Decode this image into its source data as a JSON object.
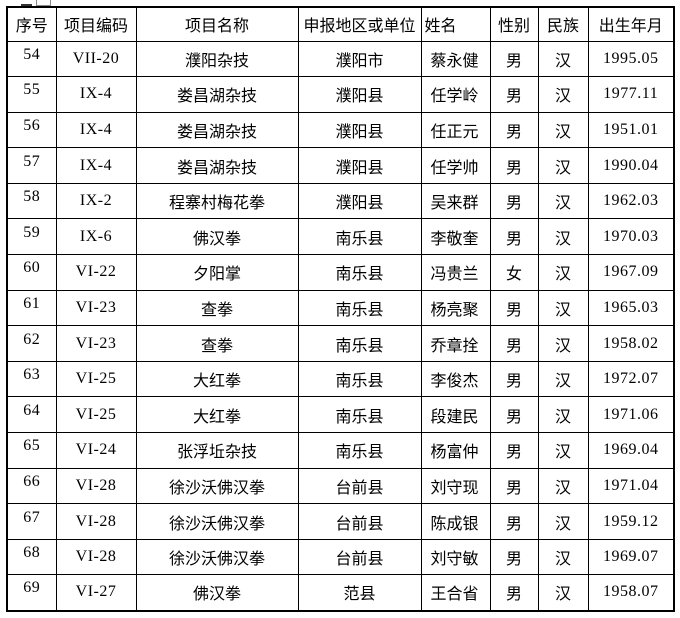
{
  "colors": {
    "border": "#000000",
    "text": "#000000",
    "background": "#ffffff"
  },
  "table": {
    "columns": [
      "序号",
      "项目编码",
      "项目名称",
      "申报地区或单位",
      "姓名",
      "性别",
      "民族",
      "出生年月"
    ],
    "rows": [
      [
        "54",
        "VII-20",
        "濮阳杂技",
        "濮阳市",
        "蔡永健",
        "男",
        "汉",
        "1995.05"
      ],
      [
        "55",
        "IX-4",
        "娄昌湖杂技",
        "濮阳县",
        "任学岭",
        "男",
        "汉",
        "1977.11"
      ],
      [
        "56",
        "IX-4",
        "娄昌湖杂技",
        "濮阳县",
        "任正元",
        "男",
        "汉",
        "1951.01"
      ],
      [
        "57",
        "IX-4",
        "娄昌湖杂技",
        "濮阳县",
        "任学帅",
        "男",
        "汉",
        "1990.04"
      ],
      [
        "58",
        "IX-2",
        "程寨村梅花拳",
        "濮阳县",
        "吴来群",
        "男",
        "汉",
        "1962.03"
      ],
      [
        "59",
        "IX-6",
        "佛汉拳",
        "南乐县",
        "李敬奎",
        "男",
        "汉",
        "1970.03"
      ],
      [
        "60",
        "VI-22",
        "夕阳掌",
        "南乐县",
        "冯贵兰",
        "女",
        "汉",
        "1967.09"
      ],
      [
        "61",
        "VI-23",
        "查拳",
        "南乐县",
        "杨亮聚",
        "男",
        "汉",
        "1965.03"
      ],
      [
        "62",
        "VI-23",
        "查拳",
        "南乐县",
        "乔章拴",
        "男",
        "汉",
        "1958.02"
      ],
      [
        "63",
        "VI-25",
        "大红拳",
        "南乐县",
        "李俊杰",
        "男",
        "汉",
        "1972.07"
      ],
      [
        "64",
        "VI-25",
        "大红拳",
        "南乐县",
        "段建民",
        "男",
        "汉",
        "1971.06"
      ],
      [
        "65",
        "VI-24",
        "张浮坵杂技",
        "南乐县",
        "杨富仲",
        "男",
        "汉",
        "1969.04"
      ],
      [
        "66",
        "VI-28",
        "徐沙沃佛汉拳",
        "台前县",
        "刘守现",
        "男",
        "汉",
        "1971.04"
      ],
      [
        "67",
        "VI-28",
        "徐沙沃佛汉拳",
        "台前县",
        "陈成银",
        "男",
        "汉",
        "1959.12"
      ],
      [
        "68",
        "VI-28",
        "徐沙沃佛汉拳",
        "台前县",
        "刘守敏",
        "男",
        "汉",
        "1969.07"
      ],
      [
        "69",
        "VI-27",
        "佛汉拳",
        "范县",
        "王合省",
        "男",
        "汉",
        "1958.07"
      ]
    ]
  }
}
